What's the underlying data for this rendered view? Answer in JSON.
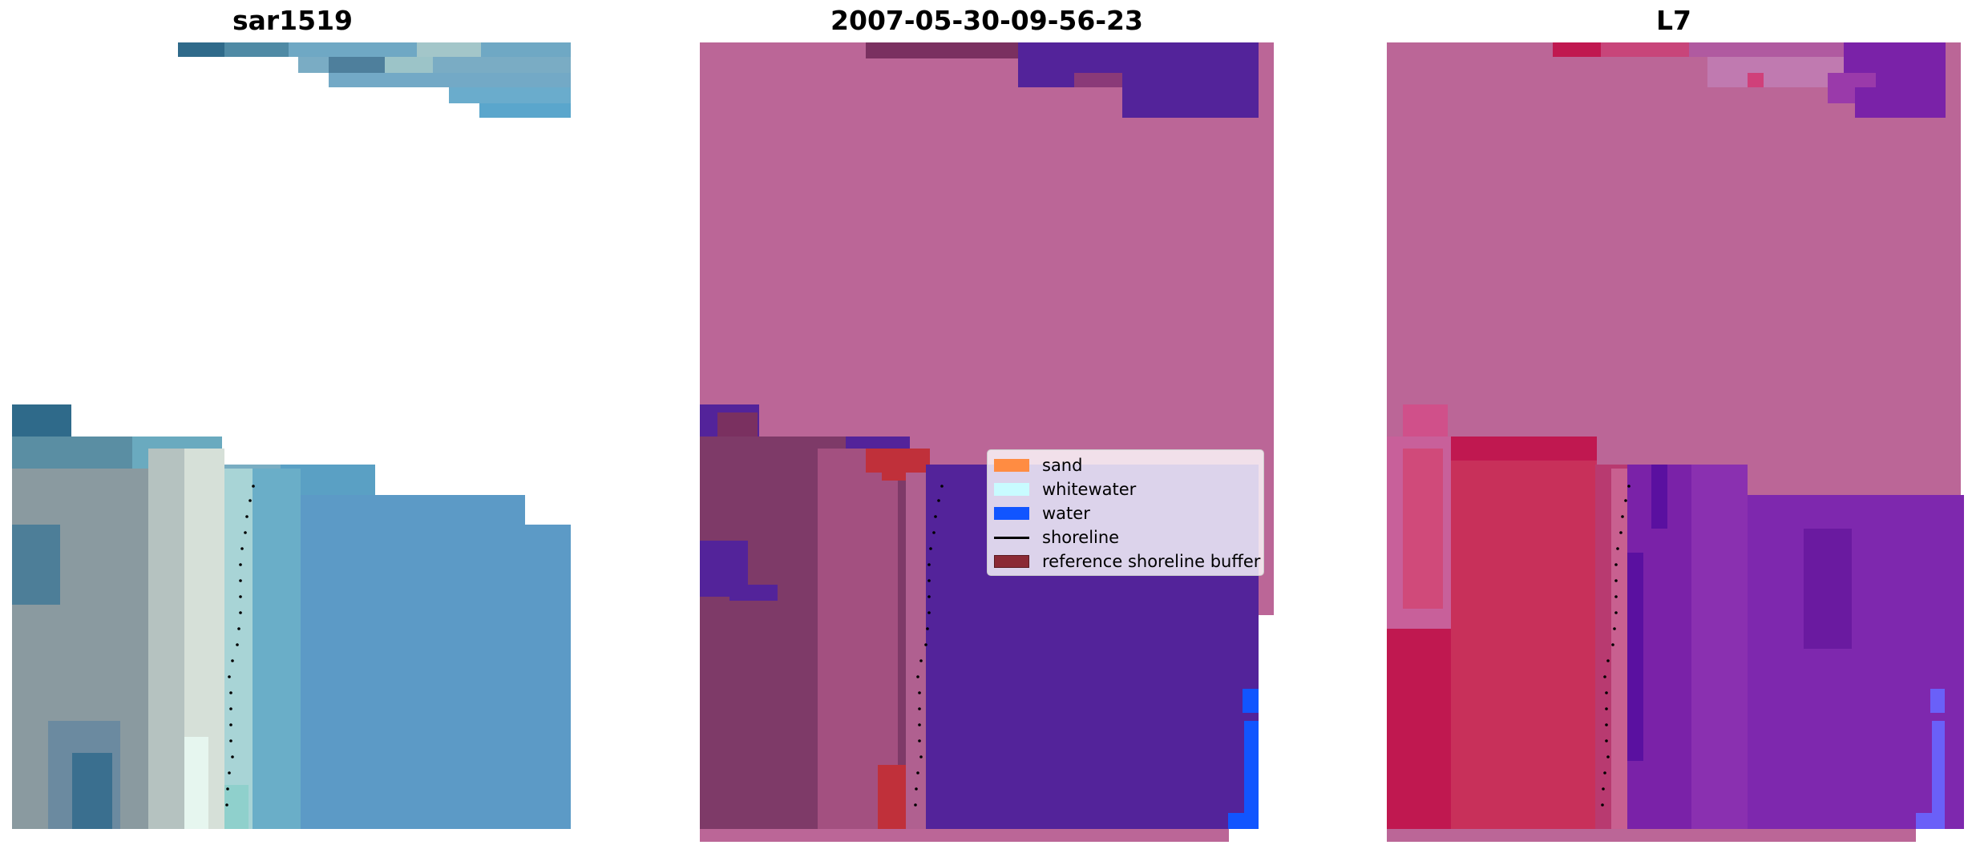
{
  "panels": [
    {
      "title": "sar1519",
      "kind": "rgb-image"
    },
    {
      "title": "2007-05-30-09-56-23",
      "kind": "classified-image"
    },
    {
      "title": "L7",
      "kind": "index-image"
    }
  ],
  "legend": {
    "items": [
      {
        "label": "sand",
        "color": "#ff8c42",
        "type": "patch"
      },
      {
        "label": "whitewater",
        "color": "#c8fbff",
        "type": "patch"
      },
      {
        "label": "water",
        "color": "#1155ff",
        "type": "patch"
      },
      {
        "label": "shoreline",
        "color": "#000000",
        "type": "line"
      },
      {
        "label": "reference shoreline buffer",
        "color": "#8b2a35",
        "type": "patch"
      }
    ]
  },
  "colors": {
    "background": "#ffffff",
    "rgb_blue": "#5a9fc8",
    "rgb_dark": "#2f6a8a",
    "class_magenta": "#bb6697",
    "class_purple": "#53239a",
    "class_darkmagenta": "#7a3060",
    "class_blue": "#1155ff",
    "buffer_red": "#c0303a",
    "index_red": "#c01850",
    "index_purple": "#7a22a8"
  }
}
